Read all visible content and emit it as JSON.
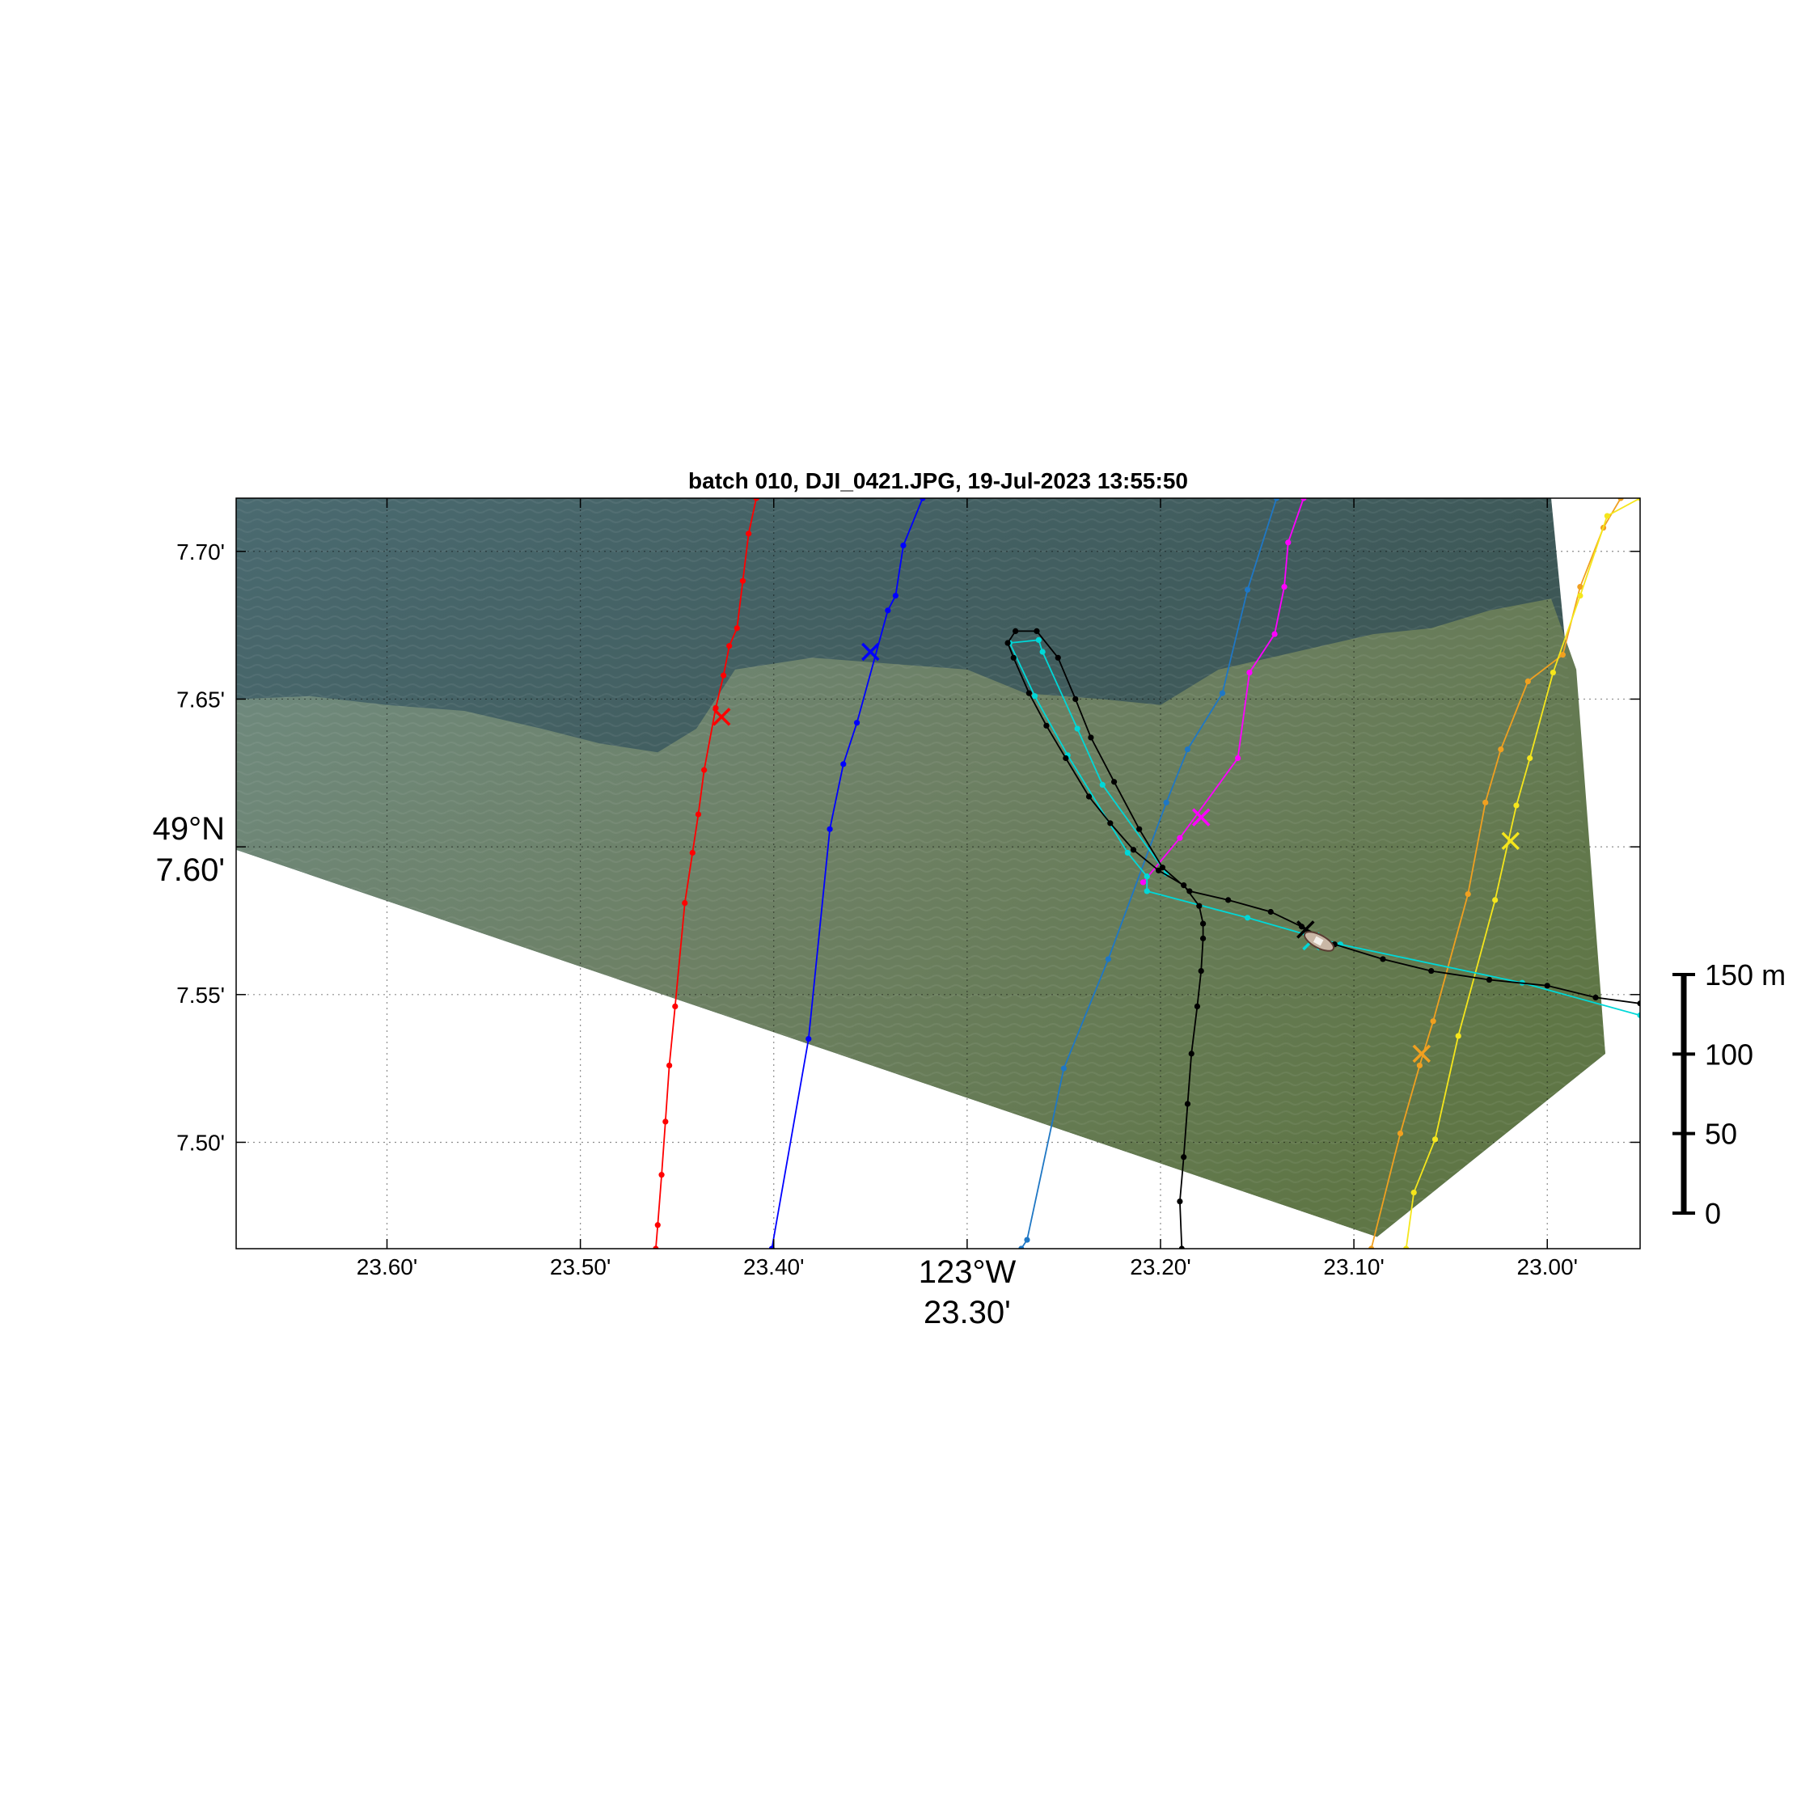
{
  "title": "batch 010, DJI_0421.JPG, 19-Jul-2023 13:55:50",
  "axes": {
    "lon_deg_label": "123°W",
    "lat_deg_label": "49°N",
    "x_ticks": [
      {
        "value": 23.6,
        "label": "23.60'"
      },
      {
        "value": 23.5,
        "label": "23.50'"
      },
      {
        "value": 23.4,
        "label": "23.40'"
      },
      {
        "value": 23.3,
        "label": "23.30'"
      },
      {
        "value": 23.2,
        "label": "23.20'"
      },
      {
        "value": 23.1,
        "label": "23.10'"
      },
      {
        "value": 23.0,
        "label": "23.00'"
      }
    ],
    "y_ticks": [
      {
        "value": 7.7,
        "label": "7.70'"
      },
      {
        "value": 7.65,
        "label": "7.65'"
      },
      {
        "value": 7.6,
        "label": "7.60'"
      },
      {
        "value": 7.55,
        "label": "7.55'"
      },
      {
        "value": 7.5,
        "label": "7.50'"
      }
    ],
    "xlim": [
      23.678,
      22.952
    ],
    "ylim": [
      7.464,
      7.718
    ],
    "grid": true
  },
  "scale_bar": {
    "unit_label": "150 m",
    "ticks": [
      {
        "value": 0,
        "label": "0"
      },
      {
        "value": 50,
        "label": "50"
      },
      {
        "value": 100,
        "label": "100"
      },
      {
        "value": 150,
        "label": "150 m"
      }
    ]
  },
  "image_overlay": {
    "description_colors": {
      "deep_water": "#3e5a5c",
      "plume_water": "#6e7e58",
      "dark_corner": "#2e423e"
    },
    "footprint": [
      {
        "lon": 23.678,
        "lat": 7.718
      },
      {
        "lon": 22.998,
        "lat": 7.718
      },
      {
        "lon": 22.97,
        "lat": 7.53
      },
      {
        "lon": 23.088,
        "lat": 7.468
      },
      {
        "lon": 23.678,
        "lat": 7.599
      }
    ]
  },
  "tracks": [
    {
      "id": "red",
      "color": "#ff0000",
      "marker": {
        "lon": 23.427,
        "lat": 7.644
      },
      "points": [
        {
          "lon": 23.461,
          "lat": 7.464
        },
        {
          "lon": 23.46,
          "lat": 7.472
        },
        {
          "lon": 23.458,
          "lat": 7.489
        },
        {
          "lon": 23.456,
          "lat": 7.507
        },
        {
          "lon": 23.454,
          "lat": 7.526
        },
        {
          "lon": 23.451,
          "lat": 7.546
        },
        {
          "lon": 23.446,
          "lat": 7.581
        },
        {
          "lon": 23.442,
          "lat": 7.598
        },
        {
          "lon": 23.439,
          "lat": 7.611
        },
        {
          "lon": 23.436,
          "lat": 7.626
        },
        {
          "lon": 23.43,
          "lat": 7.647
        },
        {
          "lon": 23.426,
          "lat": 7.658
        },
        {
          "lon": 23.423,
          "lat": 7.668
        },
        {
          "lon": 23.419,
          "lat": 7.674
        },
        {
          "lon": 23.416,
          "lat": 7.69
        },
        {
          "lon": 23.413,
          "lat": 7.706
        },
        {
          "lon": 23.409,
          "lat": 7.718
        }
      ]
    },
    {
      "id": "blue",
      "color": "#0000ff",
      "marker": {
        "lon": 23.35,
        "lat": 7.666
      },
      "points": [
        {
          "lon": 23.401,
          "lat": 7.464
        },
        {
          "lon": 23.382,
          "lat": 7.535
        },
        {
          "lon": 23.371,
          "lat": 7.606
        },
        {
          "lon": 23.364,
          "lat": 7.628
        },
        {
          "lon": 23.357,
          "lat": 7.642
        },
        {
          "lon": 23.341,
          "lat": 7.68
        },
        {
          "lon": 23.337,
          "lat": 7.685
        },
        {
          "lon": 23.333,
          "lat": 7.702
        },
        {
          "lon": 23.323,
          "lat": 7.718
        }
      ]
    },
    {
      "id": "steelblue",
      "color": "#1f77c4",
      "marker": null,
      "points": [
        {
          "lon": 23.272,
          "lat": 7.464
        },
        {
          "lon": 23.269,
          "lat": 7.467
        },
        {
          "lon": 23.25,
          "lat": 7.525
        },
        {
          "lon": 23.227,
          "lat": 7.562
        },
        {
          "lon": 23.197,
          "lat": 7.615
        },
        {
          "lon": 23.186,
          "lat": 7.633
        },
        {
          "lon": 23.168,
          "lat": 7.652
        },
        {
          "lon": 23.155,
          "lat": 7.687
        },
        {
          "lon": 23.14,
          "lat": 7.718
        }
      ]
    },
    {
      "id": "magenta",
      "color": "#ff00ff",
      "marker": {
        "lon": 23.179,
        "lat": 7.61
      },
      "points": [
        {
          "lon": 23.209,
          "lat": 7.588
        },
        {
          "lon": 23.19,
          "lat": 7.603
        },
        {
          "lon": 23.16,
          "lat": 7.63
        },
        {
          "lon": 23.154,
          "lat": 7.659
        },
        {
          "lon": 23.141,
          "lat": 7.672
        },
        {
          "lon": 23.136,
          "lat": 7.688
        },
        {
          "lon": 23.134,
          "lat": 7.703
        },
        {
          "lon": 23.126,
          "lat": 7.718
        }
      ]
    },
    {
      "id": "orange",
      "color": "#f0a020",
      "marker": {
        "lon": 23.065,
        "lat": 7.53
      },
      "points": [
        {
          "lon": 23.091,
          "lat": 7.464
        },
        {
          "lon": 23.076,
          "lat": 7.503
        },
        {
          "lon": 23.066,
          "lat": 7.526
        },
        {
          "lon": 23.059,
          "lat": 7.541
        },
        {
          "lon": 23.041,
          "lat": 7.584
        },
        {
          "lon": 23.032,
          "lat": 7.615
        },
        {
          "lon": 23.024,
          "lat": 7.633
        },
        {
          "lon": 23.01,
          "lat": 7.656
        },
        {
          "lon": 22.992,
          "lat": 7.665
        },
        {
          "lon": 22.983,
          "lat": 7.688
        },
        {
          "lon": 22.971,
          "lat": 7.708
        },
        {
          "lon": 22.962,
          "lat": 7.718
        }
      ]
    },
    {
      "id": "yellow",
      "color": "#f5e61c",
      "marker": {
        "lon": 23.019,
        "lat": 7.602
      },
      "points": [
        {
          "lon": 23.073,
          "lat": 7.464
        },
        {
          "lon": 23.069,
          "lat": 7.483
        },
        {
          "lon": 23.058,
          "lat": 7.501
        },
        {
          "lon": 23.046,
          "lat": 7.536
        },
        {
          "lon": 23.027,
          "lat": 7.582
        },
        {
          "lon": 23.016,
          "lat": 7.614
        },
        {
          "lon": 23.009,
          "lat": 7.63
        },
        {
          "lon": 22.997,
          "lat": 7.659
        },
        {
          "lon": 22.983,
          "lat": 7.685
        },
        {
          "lon": 22.969,
          "lat": 7.712
        },
        {
          "lon": 22.952,
          "lat": 7.718
        }
      ]
    },
    {
      "id": "cyan",
      "color": "#00d8d8",
      "marker": {
        "lon": 23.122,
        "lat": 7.568
      },
      "points": [
        {
          "lon": 22.952,
          "lat": 7.543
        },
        {
          "lon": 23.013,
          "lat": 7.554
        },
        {
          "lon": 23.107,
          "lat": 7.567
        },
        {
          "lon": 23.155,
          "lat": 7.576
        },
        {
          "lon": 23.207,
          "lat": 7.585
        },
        {
          "lon": 23.207,
          "lat": 7.59
        },
        {
          "lon": 23.217,
          "lat": 7.598
        },
        {
          "lon": 23.248,
          "lat": 7.631
        },
        {
          "lon": 23.265,
          "lat": 7.651
        },
        {
          "lon": 23.278,
          "lat": 7.669
        },
        {
          "lon": 23.263,
          "lat": 7.67
        },
        {
          "lon": 23.261,
          "lat": 7.666
        },
        {
          "lon": 23.243,
          "lat": 7.64
        },
        {
          "lon": 23.23,
          "lat": 7.621
        },
        {
          "lon": 23.197,
          "lat": 7.591
        }
      ]
    },
    {
      "id": "black",
      "color": "#000000",
      "marker": {
        "lon": 23.125,
        "lat": 7.572
      },
      "points": [
        {
          "lon": 23.189,
          "lat": 7.464
        },
        {
          "lon": 23.19,
          "lat": 7.48
        },
        {
          "lon": 23.188,
          "lat": 7.495
        },
        {
          "lon": 23.186,
          "lat": 7.513
        },
        {
          "lon": 23.184,
          "lat": 7.53
        },
        {
          "lon": 23.181,
          "lat": 7.546
        },
        {
          "lon": 23.179,
          "lat": 7.558
        },
        {
          "lon": 23.178,
          "lat": 7.569
        },
        {
          "lon": 23.178,
          "lat": 7.574
        },
        {
          "lon": 23.18,
          "lat": 7.58
        },
        {
          "lon": 23.188,
          "lat": 7.587
        },
        {
          "lon": 23.201,
          "lat": 7.592
        },
        {
          "lon": 23.214,
          "lat": 7.599
        },
        {
          "lon": 23.226,
          "lat": 7.608
        },
        {
          "lon": 23.237,
          "lat": 7.617
        },
        {
          "lon": 23.249,
          "lat": 7.63
        },
        {
          "lon": 23.259,
          "lat": 7.641
        },
        {
          "lon": 23.268,
          "lat": 7.652
        },
        {
          "lon": 23.276,
          "lat": 7.664
        },
        {
          "lon": 23.279,
          "lat": 7.669
        },
        {
          "lon": 23.275,
          "lat": 7.673
        },
        {
          "lon": 23.264,
          "lat": 7.673
        },
        {
          "lon": 23.253,
          "lat": 7.664
        },
        {
          "lon": 23.244,
          "lat": 7.65
        },
        {
          "lon": 23.236,
          "lat": 7.637
        },
        {
          "lon": 23.224,
          "lat": 7.622
        },
        {
          "lon": 23.211,
          "lat": 7.606
        },
        {
          "lon": 23.199,
          "lat": 7.593
        },
        {
          "lon": 23.185,
          "lat": 7.585
        },
        {
          "lon": 23.165,
          "lat": 7.582
        },
        {
          "lon": 23.143,
          "lat": 7.578
        },
        {
          "lon": 23.127,
          "lat": 7.573
        },
        {
          "lon": 23.11,
          "lat": 7.567
        },
        {
          "lon": 23.085,
          "lat": 7.562
        },
        {
          "lon": 23.06,
          "lat": 7.558
        },
        {
          "lon": 23.03,
          "lat": 7.555
        },
        {
          "lon": 23.0,
          "lat": 7.553
        },
        {
          "lon": 22.975,
          "lat": 7.549
        },
        {
          "lon": 22.952,
          "lat": 7.547
        }
      ]
    }
  ]
}
